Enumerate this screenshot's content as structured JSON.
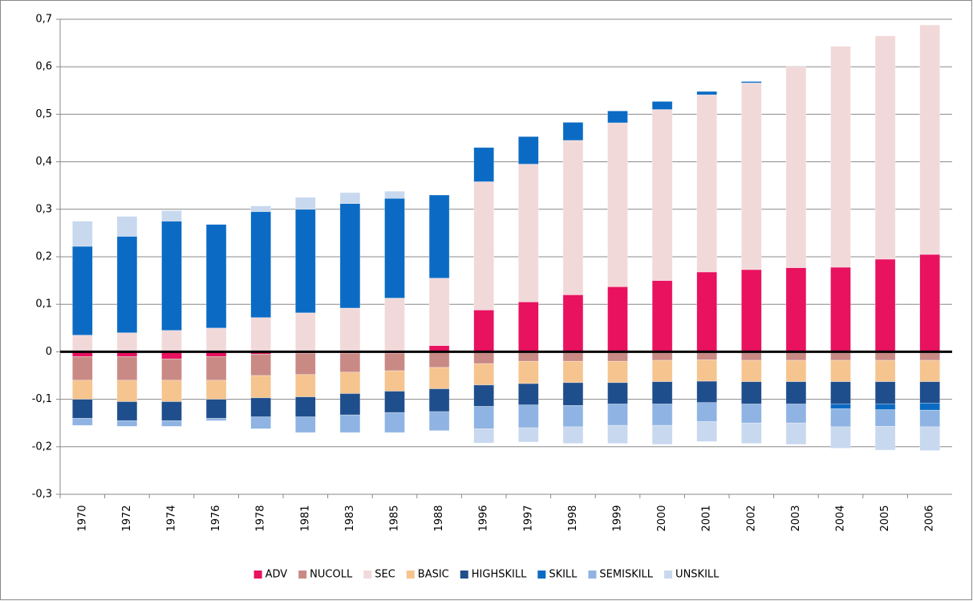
{
  "chart_data": {
    "type": "stacked_bar",
    "categories": [
      "1970",
      "1972",
      "1974",
      "1976",
      "1978",
      "1981",
      "1983",
      "1985",
      "1988",
      "1996",
      "1997",
      "1998",
      "1999",
      "2000",
      "2001",
      "2002",
      "2003",
      "2004",
      "2005",
      "2006"
    ],
    "series": [
      {
        "name": "ADV",
        "color": "#e8125f",
        "values": [
          -0.01,
          -0.01,
          -0.015,
          -0.01,
          -0.005,
          -0.003,
          -0.003,
          -0.003,
          0.013,
          0.088,
          0.105,
          0.12,
          0.137,
          0.15,
          0.168,
          0.173,
          0.177,
          0.178,
          0.195,
          0.205
        ]
      },
      {
        "name": "NUCOLL",
        "color": "#c98a86",
        "values": [
          -0.05,
          -0.05,
          -0.045,
          -0.05,
          -0.045,
          -0.045,
          -0.04,
          -0.037,
          -0.033,
          -0.025,
          -0.02,
          -0.02,
          -0.02,
          -0.018,
          -0.017,
          -0.018,
          -0.018,
          -0.018,
          -0.018,
          -0.018
        ]
      },
      {
        "name": "SEC",
        "color": "#f2d9d9",
        "values": [
          0.035,
          0.04,
          0.045,
          0.05,
          0.072,
          0.082,
          0.092,
          0.113,
          0.142,
          0.27,
          0.29,
          0.325,
          0.345,
          0.36,
          0.373,
          0.393,
          0.423,
          0.465,
          0.47,
          0.483
        ]
      },
      {
        "name": "BASIC",
        "color": "#f5c48f",
        "values": [
          -0.04,
          -0.045,
          -0.045,
          -0.04,
          -0.047,
          -0.047,
          -0.045,
          -0.043,
          -0.045,
          -0.045,
          -0.047,
          -0.045,
          -0.045,
          -0.045,
          -0.045,
          -0.045,
          -0.045,
          -0.045,
          -0.045,
          -0.045
        ]
      },
      {
        "name": "HIGHSKILL",
        "color": "#1f4e8c",
        "values": [
          -0.04,
          -0.04,
          -0.04,
          -0.04,
          -0.04,
          -0.042,
          -0.045,
          -0.045,
          -0.048,
          -0.045,
          -0.045,
          -0.048,
          -0.045,
          -0.047,
          -0.045,
          -0.047,
          -0.047,
          -0.047,
          -0.047,
          -0.045
        ]
      },
      {
        "name": "SKILL",
        "color": "#0b6bc4",
        "values": [
          0.187,
          0.203,
          0.23,
          0.218,
          0.223,
          0.218,
          0.22,
          0.21,
          0.175,
          0.072,
          0.058,
          0.038,
          0.025,
          0.017,
          0.007,
          0.003,
          0.0,
          -0.01,
          -0.012,
          -0.015
        ]
      },
      {
        "name": "SEMISKILL",
        "color": "#8fb4e3",
        "values": [
          -0.015,
          -0.012,
          -0.012,
          -0.005,
          -0.025,
          -0.033,
          -0.037,
          -0.042,
          -0.04,
          -0.047,
          -0.048,
          -0.045,
          -0.045,
          -0.045,
          -0.04,
          -0.04,
          -0.04,
          -0.038,
          -0.035,
          -0.035
        ]
      },
      {
        "name": "UNSKILL",
        "color": "#c8d8ef",
        "values": [
          0.053,
          0.042,
          0.022,
          0.0,
          0.012,
          0.025,
          0.023,
          0.015,
          0.0,
          -0.03,
          -0.03,
          -0.035,
          -0.038,
          -0.04,
          -0.042,
          -0.043,
          -0.045,
          -0.045,
          -0.05,
          -0.05
        ]
      }
    ],
    "ylim": [
      -0.3,
      0.7
    ],
    "yticks": [
      {
        "value": -0.3,
        "label": "-0,3"
      },
      {
        "value": -0.2,
        "label": "-0,2"
      },
      {
        "value": -0.1,
        "label": "-0,1"
      },
      0,
      {
        "value": 0.1,
        "label": "0,1"
      },
      {
        "value": 0.2,
        "label": "0,2"
      },
      {
        "value": 0.3,
        "label": "0,3"
      },
      {
        "value": 0.4,
        "label": "0,4"
      },
      {
        "value": 0.5,
        "label": "0,5"
      },
      {
        "value": 0.6,
        "label": "0,6"
      },
      {
        "value": 0.7,
        "label": "0,7"
      }
    ],
    "grid": true,
    "legend": "bottom"
  }
}
